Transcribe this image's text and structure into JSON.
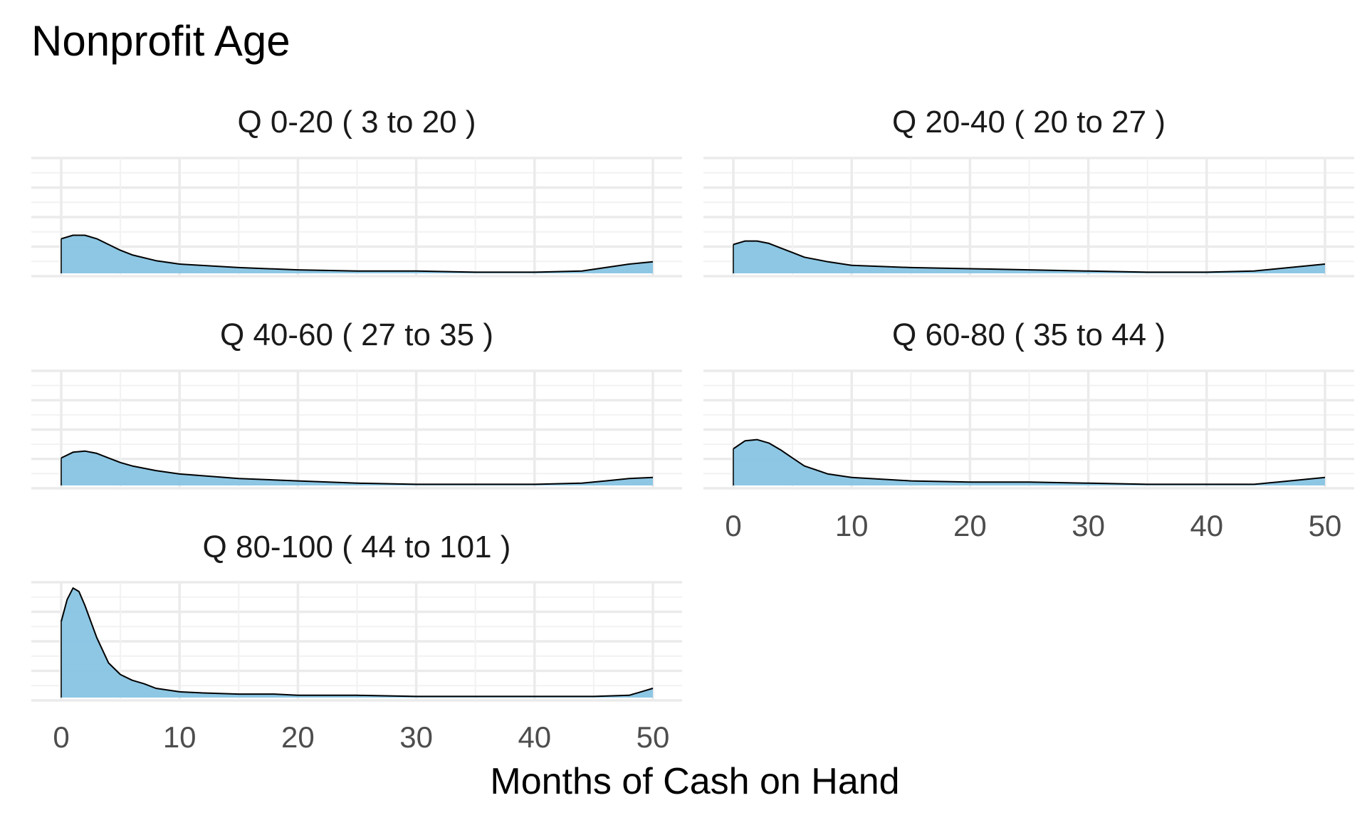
{
  "chart_data": {
    "type": "area",
    "title": "Nonprofit Age",
    "xlabel": "Months of Cash on Hand",
    "ylabel": "",
    "xlim": [
      0,
      50
    ],
    "x_ticks": [
      "0",
      "10",
      "20",
      "30",
      "40",
      "50"
    ],
    "grid": true,
    "fill_color": "#87c4e3",
    "line_color": "#000000",
    "panels": [
      {
        "label": "Q 0-20   ( 3 to 20 )",
        "x": [
          0,
          1,
          2,
          3,
          4,
          5,
          6,
          8,
          10,
          15,
          20,
          25,
          30,
          35,
          40,
          44,
          46,
          48,
          50
        ],
        "y": [
          0.3,
          0.33,
          0.33,
          0.3,
          0.25,
          0.2,
          0.16,
          0.11,
          0.08,
          0.05,
          0.03,
          0.02,
          0.02,
          0.01,
          0.01,
          0.02,
          0.05,
          0.08,
          0.1
        ]
      },
      {
        "label": "Q 20-40   ( 20 to 27 )",
        "x": [
          0,
          1,
          2,
          3,
          4,
          5,
          6,
          8,
          10,
          15,
          20,
          25,
          30,
          35,
          40,
          44,
          46,
          48,
          50
        ],
        "y": [
          0.25,
          0.28,
          0.28,
          0.26,
          0.22,
          0.18,
          0.14,
          0.1,
          0.07,
          0.05,
          0.04,
          0.03,
          0.02,
          0.01,
          0.01,
          0.02,
          0.04,
          0.06,
          0.08
        ]
      },
      {
        "label": "Q 40-60   ( 27 to 35 )",
        "x": [
          0,
          1,
          2,
          3,
          4,
          5,
          6,
          8,
          10,
          15,
          20,
          25,
          30,
          35,
          40,
          44,
          46,
          48,
          50
        ],
        "y": [
          0.24,
          0.29,
          0.3,
          0.28,
          0.24,
          0.2,
          0.17,
          0.13,
          0.1,
          0.06,
          0.04,
          0.02,
          0.01,
          0.01,
          0.01,
          0.02,
          0.04,
          0.06,
          0.07
        ]
      },
      {
        "label": "Q 60-80   ( 35 to 44 )",
        "x": [
          0,
          1,
          2,
          3,
          4,
          5,
          6,
          8,
          10,
          15,
          20,
          25,
          30,
          35,
          40,
          44,
          46,
          48,
          50
        ],
        "y": [
          0.32,
          0.39,
          0.4,
          0.37,
          0.31,
          0.24,
          0.17,
          0.1,
          0.07,
          0.04,
          0.03,
          0.03,
          0.02,
          0.01,
          0.01,
          0.01,
          0.03,
          0.05,
          0.07
        ]
      },
      {
        "label": "Q 80-100   ( 44 to 101 )",
        "x": [
          0,
          0.5,
          1,
          1.5,
          2,
          3,
          4,
          5,
          6,
          7,
          8,
          10,
          12,
          15,
          18,
          20,
          25,
          30,
          35,
          40,
          45,
          48,
          49,
          50
        ],
        "y": [
          0.66,
          0.85,
          0.95,
          0.92,
          0.8,
          0.52,
          0.3,
          0.2,
          0.15,
          0.12,
          0.08,
          0.05,
          0.04,
          0.03,
          0.03,
          0.02,
          0.02,
          0.01,
          0.01,
          0.01,
          0.01,
          0.02,
          0.05,
          0.08
        ]
      }
    ]
  }
}
